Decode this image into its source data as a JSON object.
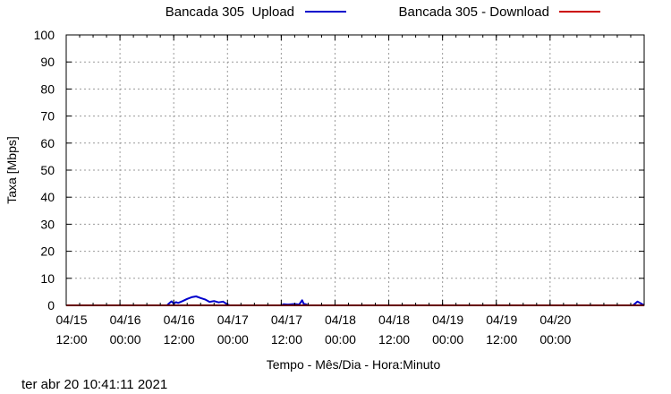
{
  "footer": {
    "timestamp": "ter abr 20 10:41:11 2021"
  },
  "chart_data": {
    "type": "line",
    "xlabel": "Tempo - Mês/Dia - Hora:Minuto",
    "ylabel": "Taxa [Mbps]",
    "ylim": [
      0,
      100
    ],
    "yticks": [
      0,
      10,
      20,
      30,
      40,
      50,
      60,
      70,
      80,
      90,
      100
    ],
    "xlim": [
      "2021-04-15 12:00",
      "2021-04-20 21:00"
    ],
    "xticks": [
      {
        "date": "04/15",
        "time": "12:00",
        "t": "2021-04-15 12:00"
      },
      {
        "date": "04/16",
        "time": "00:00",
        "t": "2021-04-16 00:00"
      },
      {
        "date": "04/16",
        "time": "12:00",
        "t": "2021-04-16 12:00"
      },
      {
        "date": "04/17",
        "time": "00:00",
        "t": "2021-04-17 00:00"
      },
      {
        "date": "04/17",
        "time": "12:00",
        "t": "2021-04-17 12:00"
      },
      {
        "date": "04/18",
        "time": "00:00",
        "t": "2021-04-18 00:00"
      },
      {
        "date": "04/18",
        "time": "12:00",
        "t": "2021-04-18 12:00"
      },
      {
        "date": "04/19",
        "time": "00:00",
        "t": "2021-04-19 00:00"
      },
      {
        "date": "04/19",
        "time": "12:00",
        "t": "2021-04-19 12:00"
      },
      {
        "date": "04/20",
        "time": "00:00",
        "t": "2021-04-20 00:00"
      }
    ],
    "grid": true,
    "legend_position": "top",
    "series": [
      {
        "name": "Bancada 305  Upload",
        "color": "#0000cc",
        "points": [
          [
            "2021-04-15 12:00",
            0
          ],
          [
            "2021-04-16 10:30",
            0
          ],
          [
            "2021-04-16 11:00",
            0.8
          ],
          [
            "2021-04-16 11:30",
            1.5
          ],
          [
            "2021-04-16 12:00",
            0.6
          ],
          [
            "2021-04-16 12:30",
            1.2
          ],
          [
            "2021-04-16 13:00",
            0.9
          ],
          [
            "2021-04-16 14:00",
            1.6
          ],
          [
            "2021-04-16 15:00",
            2.4
          ],
          [
            "2021-04-16 16:00",
            3.0
          ],
          [
            "2021-04-16 17:00",
            3.3
          ],
          [
            "2021-04-16 18:00",
            2.7
          ],
          [
            "2021-04-16 19:00",
            2.2
          ],
          [
            "2021-04-16 20:00",
            1.3
          ],
          [
            "2021-04-16 21:00",
            1.6
          ],
          [
            "2021-04-16 22:00",
            1.1
          ],
          [
            "2021-04-16 23:00",
            1.4
          ],
          [
            "2021-04-17 00:00",
            0.3
          ],
          [
            "2021-04-17 00:30",
            0
          ],
          [
            "2021-04-17 12:00",
            0
          ],
          [
            "2021-04-17 12:30",
            0.4
          ],
          [
            "2021-04-17 13:30",
            0.3
          ],
          [
            "2021-04-17 15:00",
            0.5
          ],
          [
            "2021-04-17 16:00",
            0.3
          ],
          [
            "2021-04-17 16:40",
            1.9
          ],
          [
            "2021-04-17 17:00",
            0.6
          ],
          [
            "2021-04-17 17:30",
            0.4
          ],
          [
            "2021-04-17 18:00",
            0
          ],
          [
            "2021-04-20 18:30",
            0
          ],
          [
            "2021-04-20 19:30",
            1.4
          ],
          [
            "2021-04-20 20:30",
            0.5
          ],
          [
            "2021-04-20 21:00",
            0
          ]
        ]
      },
      {
        "name": "Bancada 305 - Download",
        "color": "#cc0000",
        "points": [
          [
            "2021-04-15 12:00",
            0
          ],
          [
            "2021-04-20 21:00",
            0
          ]
        ]
      }
    ]
  }
}
